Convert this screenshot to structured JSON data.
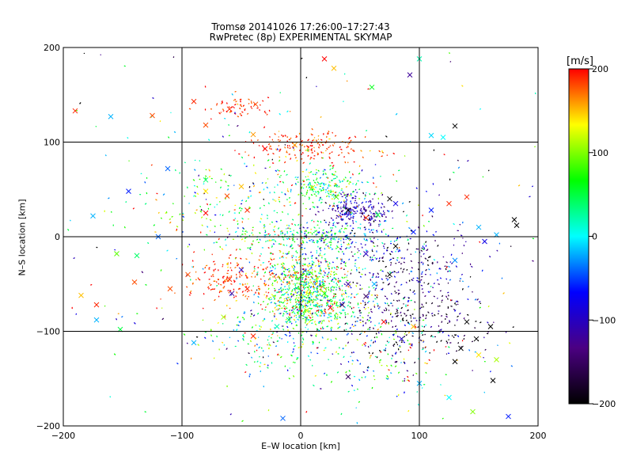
{
  "chart_data": {
    "type": "scatter",
    "title": "Tromsø 20141026 17:26:00–17:27:43",
    "subtitle": "RwPretec (8p) EXPERIMENTAL SKYMAP",
    "xlabel": "E–W location [km]",
    "ylabel": "N–S location [km]",
    "xlim": [
      -200,
      200
    ],
    "ylim": [
      -200,
      200
    ],
    "xticks": [
      -200,
      -100,
      0,
      100,
      200
    ],
    "yticks": [
      -200,
      -100,
      0,
      100,
      200
    ],
    "grid": true,
    "colorbar": {
      "label": "[m/s]",
      "range": [
        -200,
        200
      ],
      "ticks": [
        200,
        100,
        0,
        -100,
        -200
      ],
      "colormap": [
        "#000000",
        "#4b0082",
        "#0000ff",
        "#00ffff",
        "#00ff00",
        "#ffff00",
        "#ff0000"
      ]
    },
    "series": [
      {
        "marker": "cross",
        "points": [
          [
            -190,
            133,
            190
          ],
          [
            -160,
            127,
            -20
          ],
          [
            -125,
            128,
            180
          ],
          [
            -90,
            143,
            190
          ],
          [
            -60,
            135,
            190
          ],
          [
            -38,
            140,
            180
          ],
          [
            -80,
            118,
            180
          ],
          [
            -40,
            108,
            160
          ],
          [
            -30,
            93,
            200
          ],
          [
            -5,
            97,
            160
          ],
          [
            20,
            188,
            200
          ],
          [
            28,
            178,
            150
          ],
          [
            60,
            158,
            60
          ],
          [
            100,
            188,
            20
          ],
          [
            92,
            171,
            -120
          ],
          [
            130,
            117,
            -200
          ],
          [
            110,
            107,
            -10
          ],
          [
            120,
            105,
            0
          ],
          [
            -175,
            22,
            -20
          ],
          [
            -145,
            48,
            -60
          ],
          [
            -112,
            72,
            -40
          ],
          [
            -80,
            60,
            40
          ],
          [
            -50,
            53,
            150
          ],
          [
            -45,
            28,
            190
          ],
          [
            -80,
            48,
            140
          ],
          [
            -62,
            43,
            180
          ],
          [
            -80,
            25,
            200
          ],
          [
            -120,
            0,
            -40
          ],
          [
            -155,
            -18,
            90
          ],
          [
            -138,
            -20,
            40
          ],
          [
            -185,
            -62,
            150
          ],
          [
            -172,
            -72,
            190
          ],
          [
            -172,
            -88,
            -20
          ],
          [
            -152,
            -98,
            50
          ],
          [
            -140,
            -48,
            180
          ],
          [
            -110,
            -55,
            180
          ],
          [
            -95,
            -40,
            180
          ],
          [
            -90,
            -112,
            -20
          ],
          [
            -60,
            -45,
            190
          ],
          [
            -45,
            -55,
            190
          ],
          [
            -50,
            -35,
            -100
          ],
          [
            -58,
            -60,
            -120
          ],
          [
            -65,
            -85,
            110
          ],
          [
            -40,
            -105,
            190
          ],
          [
            -20,
            -95,
            20
          ],
          [
            -10,
            -88,
            40
          ],
          [
            5,
            -78,
            120
          ],
          [
            20,
            -60,
            80
          ],
          [
            25,
            -75,
            200
          ],
          [
            40,
            -50,
            -120
          ],
          [
            55,
            -63,
            -150
          ],
          [
            62,
            -50,
            -20
          ],
          [
            70,
            -90,
            200
          ],
          [
            85,
            -108,
            -100
          ],
          [
            95,
            -95,
            150
          ],
          [
            140,
            -90,
            -200
          ],
          [
            160,
            -95,
            -200
          ],
          [
            148,
            -108,
            -200
          ],
          [
            135,
            -118,
            -200
          ],
          [
            150,
            -125,
            140
          ],
          [
            165,
            -130,
            110
          ],
          [
            130,
            -132,
            -200
          ],
          [
            100,
            -155,
            -20
          ],
          [
            125,
            -170,
            0
          ],
          [
            162,
            -152,
            -200
          ],
          [
            175,
            -190,
            -60
          ],
          [
            145,
            -185,
            100
          ],
          [
            -15,
            -192,
            -40
          ],
          [
            40,
            -148,
            -150
          ],
          [
            35,
            -72,
            -140
          ],
          [
            75,
            -40,
            -200
          ],
          [
            80,
            -10,
            -200
          ],
          [
            55,
            -18,
            -100
          ],
          [
            55,
            20,
            190
          ],
          [
            65,
            23,
            50
          ],
          [
            75,
            40,
            -200
          ],
          [
            80,
            35,
            -80
          ],
          [
            95,
            5,
            -60
          ],
          [
            130,
            -25,
            -30
          ],
          [
            155,
            -5,
            -80
          ],
          [
            165,
            2,
            -20
          ],
          [
            180,
            18,
            -200
          ],
          [
            182,
            12,
            -200
          ],
          [
            125,
            35,
            190
          ],
          [
            140,
            42,
            190
          ],
          [
            110,
            28,
            -60
          ],
          [
            150,
            10,
            -20
          ],
          [
            10,
            52,
            120
          ],
          [
            30,
            42,
            80
          ],
          [
            40,
            28,
            -200
          ]
        ]
      },
      {
        "marker": "dot",
        "seed": 20141026,
        "clusters": [
          {
            "cx": 10,
            "cy": -65,
            "sx": 20,
            "sy": 18,
            "n": 700,
            "v": 60,
            "vs": 70
          },
          {
            "cx": 0,
            "cy": 0,
            "sx": 35,
            "sy": 8,
            "n": 220,
            "v": 40,
            "vs": 60
          },
          {
            "cx": 45,
            "cy": 28,
            "sx": 14,
            "sy": 9,
            "n": 200,
            "v": -110,
            "vs": 30
          },
          {
            "cx": 20,
            "cy": 52,
            "sx": 20,
            "sy": 10,
            "n": 220,
            "v": 50,
            "vs": 60
          },
          {
            "cx": 10,
            "cy": 95,
            "sx": 28,
            "sy": 9,
            "n": 180,
            "v": 185,
            "vs": 20
          },
          {
            "cx": -50,
            "cy": 135,
            "sx": 12,
            "sy": 6,
            "n": 60,
            "v": 190,
            "vs": 15
          },
          {
            "cx": -55,
            "cy": -45,
            "sx": 20,
            "sy": 12,
            "n": 180,
            "v": 185,
            "vs": 20
          },
          {
            "cx": 90,
            "cy": -40,
            "sx": 30,
            "sy": 30,
            "n": 280,
            "v": -130,
            "vs": 60
          },
          {
            "cx": 100,
            "cy": -90,
            "sx": 30,
            "sy": 20,
            "n": 160,
            "v": -180,
            "vs": 40
          },
          {
            "cx": 70,
            "cy": -120,
            "sx": 30,
            "sy": 25,
            "n": 200,
            "v": 20,
            "vs": 110
          },
          {
            "cx": -30,
            "cy": -110,
            "sx": 25,
            "sy": 20,
            "n": 140,
            "v": 50,
            "vs": 90
          },
          {
            "cx": -60,
            "cy": 40,
            "sx": 35,
            "sy": 25,
            "n": 150,
            "v": 70,
            "vs": 80
          },
          {
            "cx": 0,
            "cy": -40,
            "sx": 15,
            "sy": 15,
            "n": 220,
            "v": 90,
            "vs": 80
          },
          {
            "cx": 40,
            "cy": -5,
            "sx": 25,
            "sy": 15,
            "n": 180,
            "v": -40,
            "vs": 60
          },
          {
            "cx": 0,
            "cy": 0,
            "sx": 130,
            "sy": 110,
            "n": 420,
            "v": 0,
            "vs": 130
          }
        ]
      }
    ]
  }
}
